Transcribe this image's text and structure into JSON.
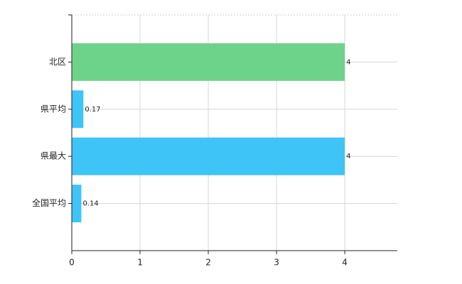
{
  "chart_data": {
    "type": "bar",
    "orientation": "horizontal",
    "categories": [
      "北区",
      "県平均",
      "県最大",
      "全国平均"
    ],
    "values": [
      4,
      0.17,
      4,
      0.14
    ],
    "colors": [
      "#6dd38b",
      "#3ec4f7",
      "#3ec4f7",
      "#3ec4f7"
    ],
    "xlim": [
      0,
      4.77
    ],
    "xticks": [
      0,
      1,
      2,
      3,
      4
    ],
    "grid": true
  }
}
